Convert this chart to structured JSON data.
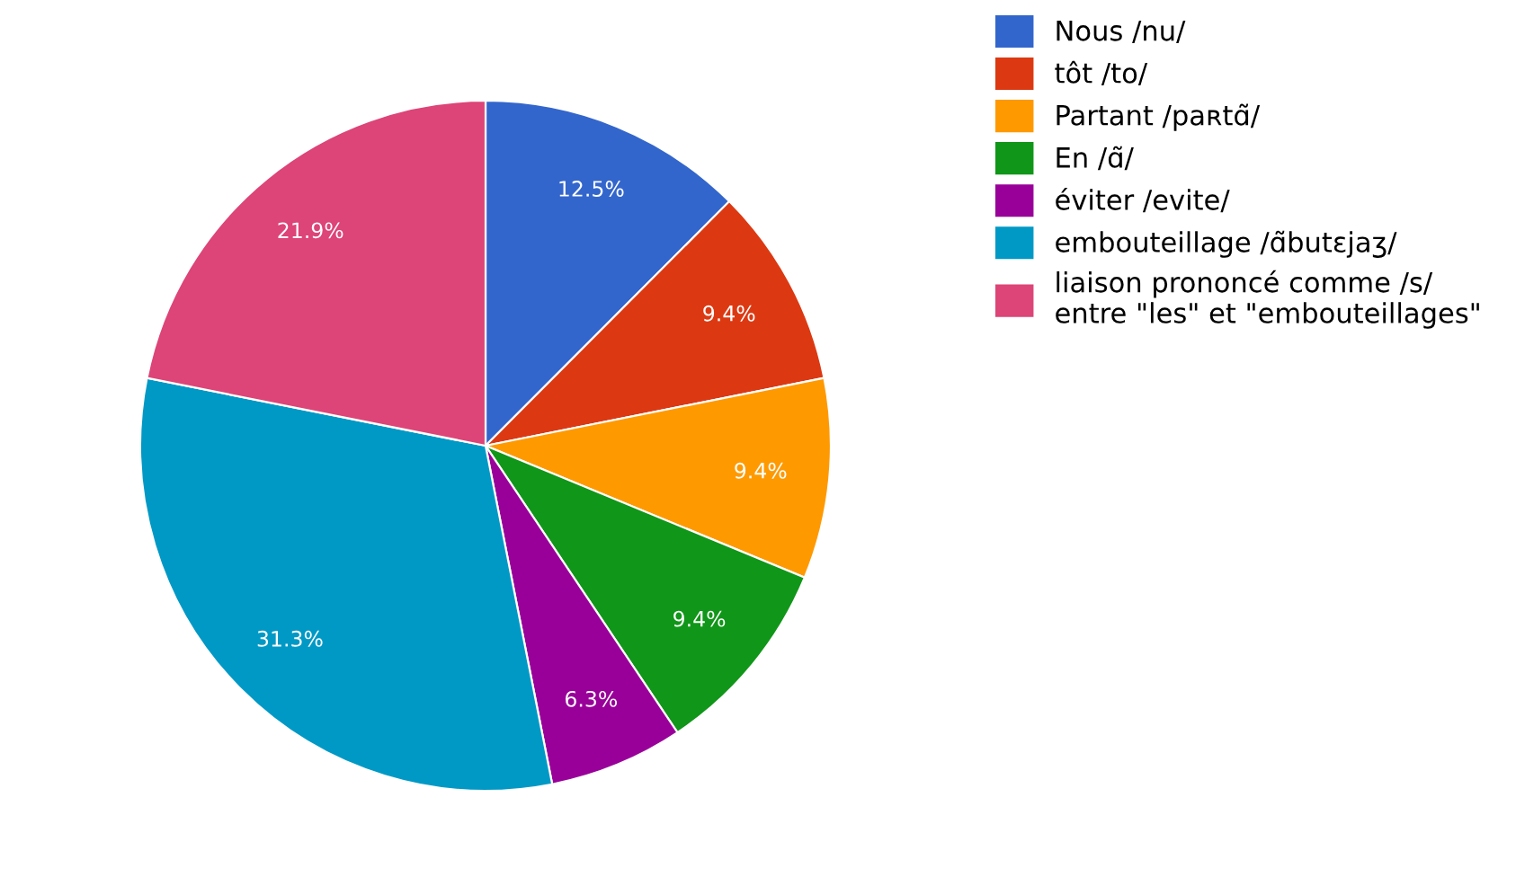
{
  "chart_data": {
    "type": "pie",
    "categories": [
      "Nous /nu/",
      "tôt /to/",
      "Partant /paʀtɑ̃/",
      "En /ɑ̃/",
      "éviter /evite/",
      "embouteillage /ɑ̃butɛjaʒ/",
      "liaison prononcé comme /s/\nentre \"les\" et \"embouteillages\""
    ],
    "values": [
      12.5,
      9.4,
      9.4,
      9.4,
      6.3,
      31.3,
      21.9
    ],
    "value_labels": [
      "12.5%",
      "9.4%",
      "9.4%",
      "9.4%",
      "6.3%",
      "31.3%",
      "21.9%"
    ],
    "colors": [
      "#3366cc",
      "#dc3912",
      "#ff9900",
      "#109618",
      "#990099",
      "#0099c6",
      "#dd4477"
    ],
    "legend": "right"
  }
}
